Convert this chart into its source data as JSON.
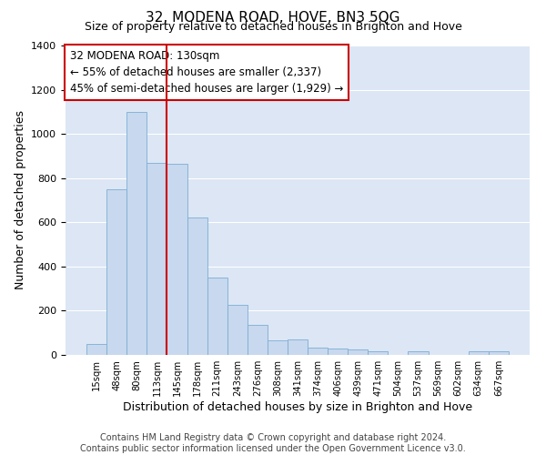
{
  "title": "32, MODENA ROAD, HOVE, BN3 5QG",
  "subtitle": "Size of property relative to detached houses in Brighton and Hove",
  "xlabel": "Distribution of detached houses by size in Brighton and Hove",
  "ylabel": "Number of detached properties",
  "categories": [
    "15sqm",
    "48sqm",
    "80sqm",
    "113sqm",
    "145sqm",
    "178sqm",
    "211sqm",
    "243sqm",
    "276sqm",
    "308sqm",
    "341sqm",
    "374sqm",
    "406sqm",
    "439sqm",
    "471sqm",
    "504sqm",
    "537sqm",
    "569sqm",
    "602sqm",
    "634sqm",
    "667sqm"
  ],
  "values": [
    50,
    750,
    1100,
    870,
    865,
    620,
    350,
    225,
    135,
    65,
    70,
    35,
    30,
    25,
    15,
    0,
    15,
    0,
    0,
    15,
    15
  ],
  "bar_color": "#c8d8ee",
  "bar_edge_color": "#7bafd4",
  "vline_x": 3.5,
  "vline_color": "#cc0000",
  "annotation_text": "32 MODENA ROAD: 130sqm\n← 55% of detached houses are smaller (2,337)\n45% of semi-detached houses are larger (1,929) →",
  "annotation_box_color": "#ffffff",
  "annotation_box_edge": "#cc0000",
  "ylim": [
    0,
    1400
  ],
  "yticks": [
    0,
    200,
    400,
    600,
    800,
    1000,
    1200,
    1400
  ],
  "bg_color": "#dce6f5",
  "footer": "Contains HM Land Registry data © Crown copyright and database right 2024.\nContains public sector information licensed under the Open Government Licence v3.0.",
  "title_fontsize": 11,
  "subtitle_fontsize": 9,
  "xlabel_fontsize": 9,
  "ylabel_fontsize": 9,
  "footer_fontsize": 7,
  "annot_fontsize": 8.5
}
